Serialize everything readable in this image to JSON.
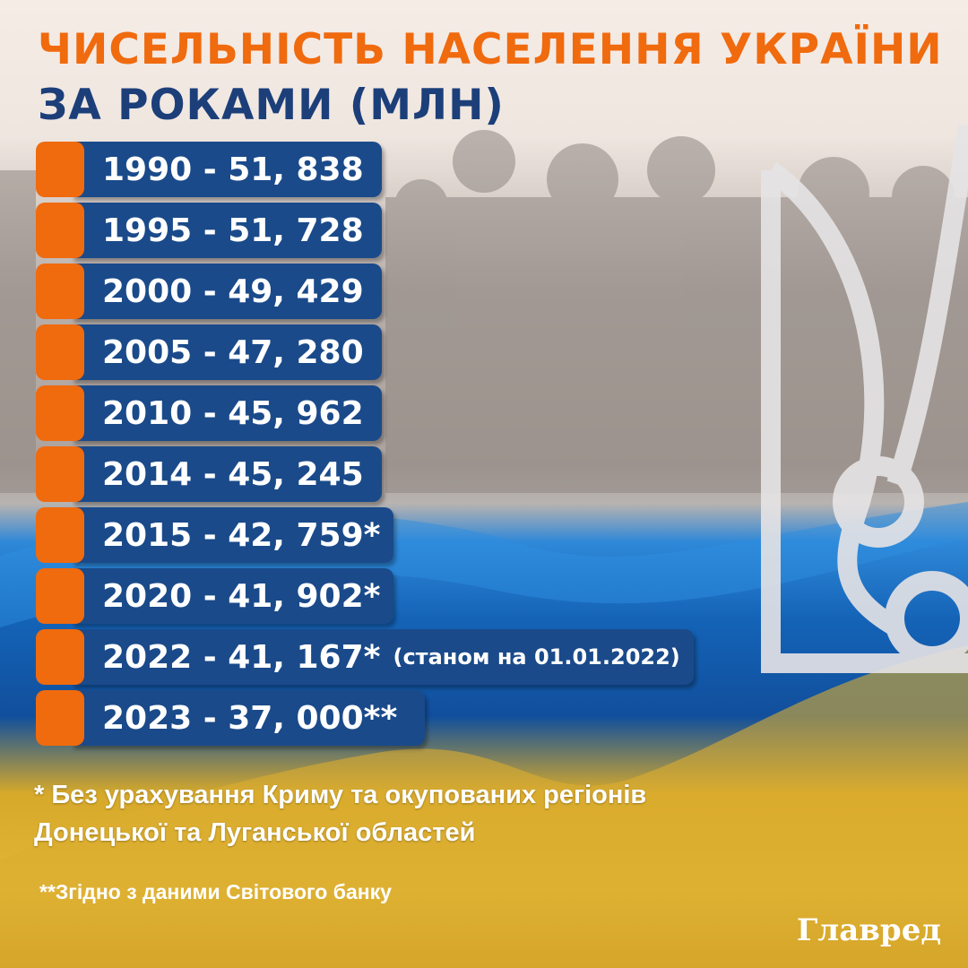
{
  "title": {
    "line1": "ЧИСЕЛЬНІСТЬ НАСЕЛЕННЯ УКРАЇНИ",
    "line2": "ЗА РОКАМИ (МЛН)"
  },
  "rows": [
    {
      "text": "1990 - 51, 838",
      "note": ""
    },
    {
      "text": "1995 - 51, 728",
      "note": ""
    },
    {
      "text": "2000 - 49, 429",
      "note": ""
    },
    {
      "text": "2005 - 47, 280",
      "note": ""
    },
    {
      "text": "2010 - 45, 962",
      "note": ""
    },
    {
      "text": "2014 - 45, 245",
      "note": ""
    },
    {
      "text": "2015 - 42, 759*",
      "note": ""
    },
    {
      "text": "2020 - 41, 902*",
      "note": ""
    },
    {
      "text": "2022 - 41, 167*",
      "note": "(станом на 01.01.2022)"
    },
    {
      "text": "2023 - 37, 000**",
      "note": ""
    }
  ],
  "footnotes": {
    "one_line1": "* Без урахування Криму та окупованих регіонів",
    "one_line2": "Донецької та Луганської областей",
    "two": "**Згідно з даними Світового банку"
  },
  "logo": "Главред",
  "colors": {
    "orange": "#f06a0e",
    "navy": "#1c3f7a",
    "bar": "#1a4a8a",
    "flag_blue": "#1463b7",
    "flag_yellow": "#e2b637"
  }
}
